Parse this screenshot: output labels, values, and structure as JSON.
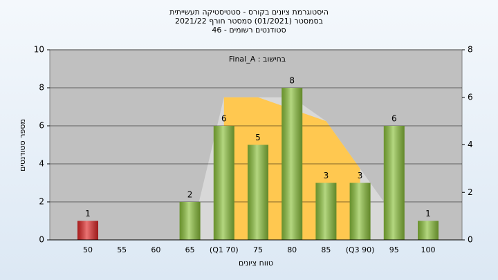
{
  "chart_data": {
    "type": "bar",
    "title": [
      "היסטוגרמת ציונים בקורס - סטטיסטיקה תעשייתית",
      "בסמסטר (01/2021) סמסטר חורף 2021/22",
      "סטודנטים רשומים - 46"
    ],
    "annotation": "בחישוב : Final_A",
    "xlabel": "טווח ציונים",
    "ylabel": "מספר סטודנטים",
    "categories": [
      "50",
      "55",
      "60",
      "65",
      "(Q1 70)",
      "75",
      "80",
      "85",
      "(Q3 90)",
      "95",
      "100"
    ],
    "values": [
      1,
      0,
      0,
      2,
      6,
      5,
      8,
      3,
      3,
      6,
      1
    ],
    "colors": [
      "#e02828",
      "#8cc23c",
      "#8cc23c",
      "#8cc23c",
      "#8cc23c",
      "#8cc23c",
      "#8cc23c",
      "#8cc23c",
      "#8cc23c",
      "#8cc23c",
      "#8cc23c"
    ],
    "areas": [
      {
        "color": "#d8d8d8",
        "values": [
          null,
          null,
          null,
          0,
          6,
          6,
          6,
          5,
          3,
          1,
          null
        ]
      },
      {
        "color": "#ffc850",
        "values": [
          null,
          null,
          null,
          null,
          6,
          6,
          5.5,
          5,
          3,
          null,
          null
        ]
      }
    ],
    "ylim": [
      0,
      10
    ],
    "yticks": [
      0,
      2,
      4,
      6,
      8,
      10
    ],
    "y2lim": [
      0,
      8
    ],
    "y2ticks": [
      0,
      2,
      4,
      6,
      8
    ],
    "grid": true
  }
}
